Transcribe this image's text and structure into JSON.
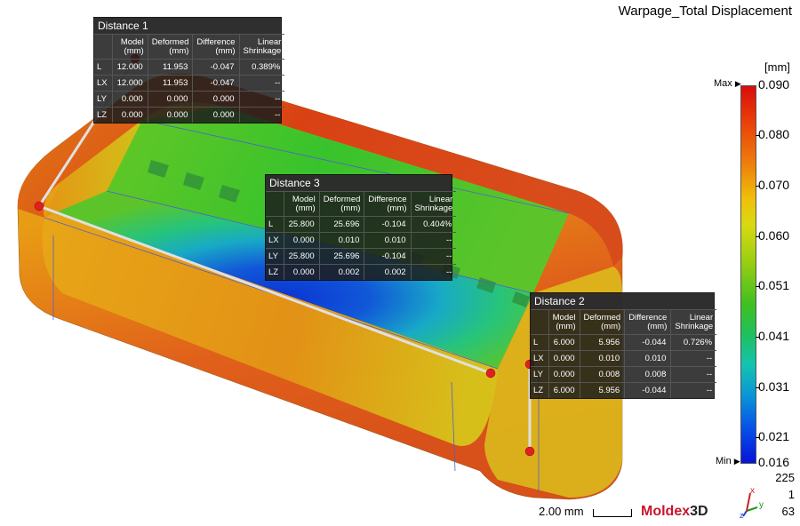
{
  "title": "Warpage_Total Displacement",
  "colors": {
    "part_hot": "#e04a10",
    "part_warm": "#e8a016",
    "part_mid": "#40c030",
    "part_cool": "#1a8fd0",
    "part_cold": "#0b3ad6",
    "marker": "#e02020",
    "panel_bg": "#1c1c1c"
  },
  "distances": [
    {
      "title": "Distance 1",
      "headers": [
        "",
        "Model\n(mm)",
        "Deformed\n(mm)",
        "Difference\n(mm)",
        "Linear\nShrinkage"
      ],
      "rows": [
        [
          "L",
          "12.000",
          "11.953",
          "-0.047",
          "0.389%"
        ],
        [
          "LX",
          "12.000",
          "11.953",
          "-0.047",
          "--"
        ],
        [
          "LY",
          "0.000",
          "0.000",
          "0.000",
          "--"
        ],
        [
          "LZ",
          "0.000",
          "0.000",
          "0.000",
          "--"
        ]
      ]
    },
    {
      "title": "Distance 3",
      "headers": [
        "",
        "Model\n(mm)",
        "Deformed\n(mm)",
        "Difference\n(mm)",
        "Linear\nShrinkage"
      ],
      "rows": [
        [
          "L",
          "25.800",
          "25.696",
          "-0.104",
          "0.404%"
        ],
        [
          "LX",
          "0.000",
          "0.010",
          "0.010",
          "--"
        ],
        [
          "LY",
          "25.800",
          "25.696",
          "-0.104",
          "--"
        ],
        [
          "LZ",
          "0.000",
          "0.002",
          "0.002",
          "--"
        ]
      ]
    },
    {
      "title": "Distance 2",
      "headers": [
        "",
        "Model\n(mm)",
        "Deformed\n(mm)",
        "Difference\n(mm)",
        "Linear\nShrinkage"
      ],
      "rows": [
        [
          "L",
          "6.000",
          "5.956",
          "-0.044",
          "0.726%"
        ],
        [
          "LX",
          "0.000",
          "0.010",
          "0.010",
          "--"
        ],
        [
          "LY",
          "0.000",
          "0.008",
          "0.008",
          "--"
        ],
        [
          "LZ",
          "6.000",
          "5.956",
          "-0.044",
          "--"
        ]
      ]
    }
  ],
  "legend": {
    "unit": "[mm]",
    "max_label": "Max",
    "min_label": "Min",
    "values": [
      "0.090",
      "0.080",
      "0.070",
      "0.060",
      "0.051",
      "0.041",
      "0.031",
      "0.021",
      "0.016"
    ]
  },
  "view_info": {
    "zoom": "225",
    "value2": "1",
    "value3": "63"
  },
  "axis_labels": {
    "x": "x",
    "y": "y",
    "z": "z"
  },
  "scale": {
    "label": "2.00 mm"
  },
  "brand": {
    "name": "Moldex",
    "suffix": "3D"
  }
}
